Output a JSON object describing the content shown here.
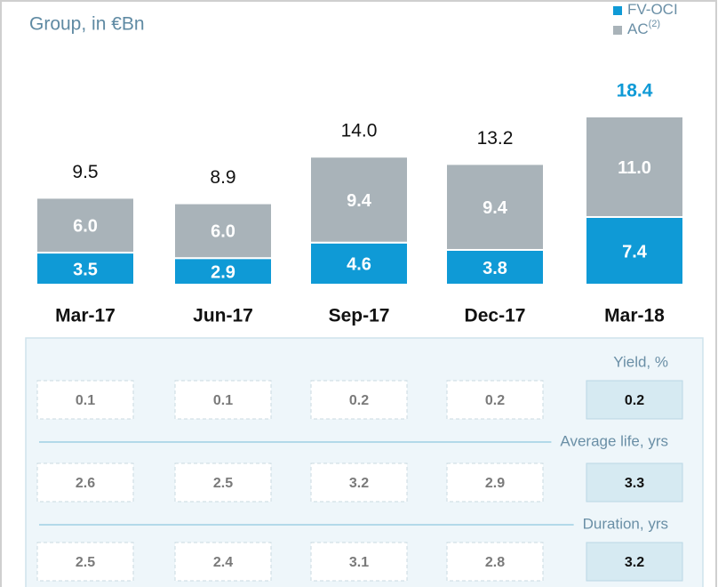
{
  "chart_data": {
    "type": "bar",
    "stacked": true,
    "title": "Group, in €Bn",
    "categories": [
      "Mar-17",
      "Jun-17",
      "Sep-17",
      "Dec-17",
      "Mar-18"
    ],
    "series": [
      {
        "name": "FV-OCI",
        "color": "#0f9ad6",
        "values": [
          3.5,
          2.9,
          4.6,
          3.8,
          7.4
        ],
        "value_labels": [
          "3.5",
          "2.9",
          "4.6",
          "3.8",
          "7.4"
        ]
      },
      {
        "name": "AC",
        "name_note": "(2)",
        "color": "#a9b3b9",
        "values": [
          6,
          6,
          9.4,
          9.4,
          11
        ],
        "value_labels": [
          "6.0",
          "6.0",
          "9.4",
          "9.4",
          "11.0"
        ]
      }
    ],
    "totals": [
      9.5,
      8.9,
      14,
      13.2,
      18.4
    ],
    "total_labels": [
      "9.5",
      "8.9",
      "14.0",
      "13.2",
      "18.4"
    ],
    "legend": "top-right",
    "metrics": [
      {
        "label": "Yield, %",
        "values": [
          0.1,
          0.1,
          0.2,
          0.2,
          0.2
        ]
      },
      {
        "label": "Average life, yrs",
        "values": [
          2.6,
          2.5,
          3.2,
          2.9,
          3.3
        ]
      },
      {
        "label": "Duration, yrs",
        "values": [
          2.5,
          2.4,
          3.1,
          2.8,
          3.2
        ]
      }
    ]
  }
}
